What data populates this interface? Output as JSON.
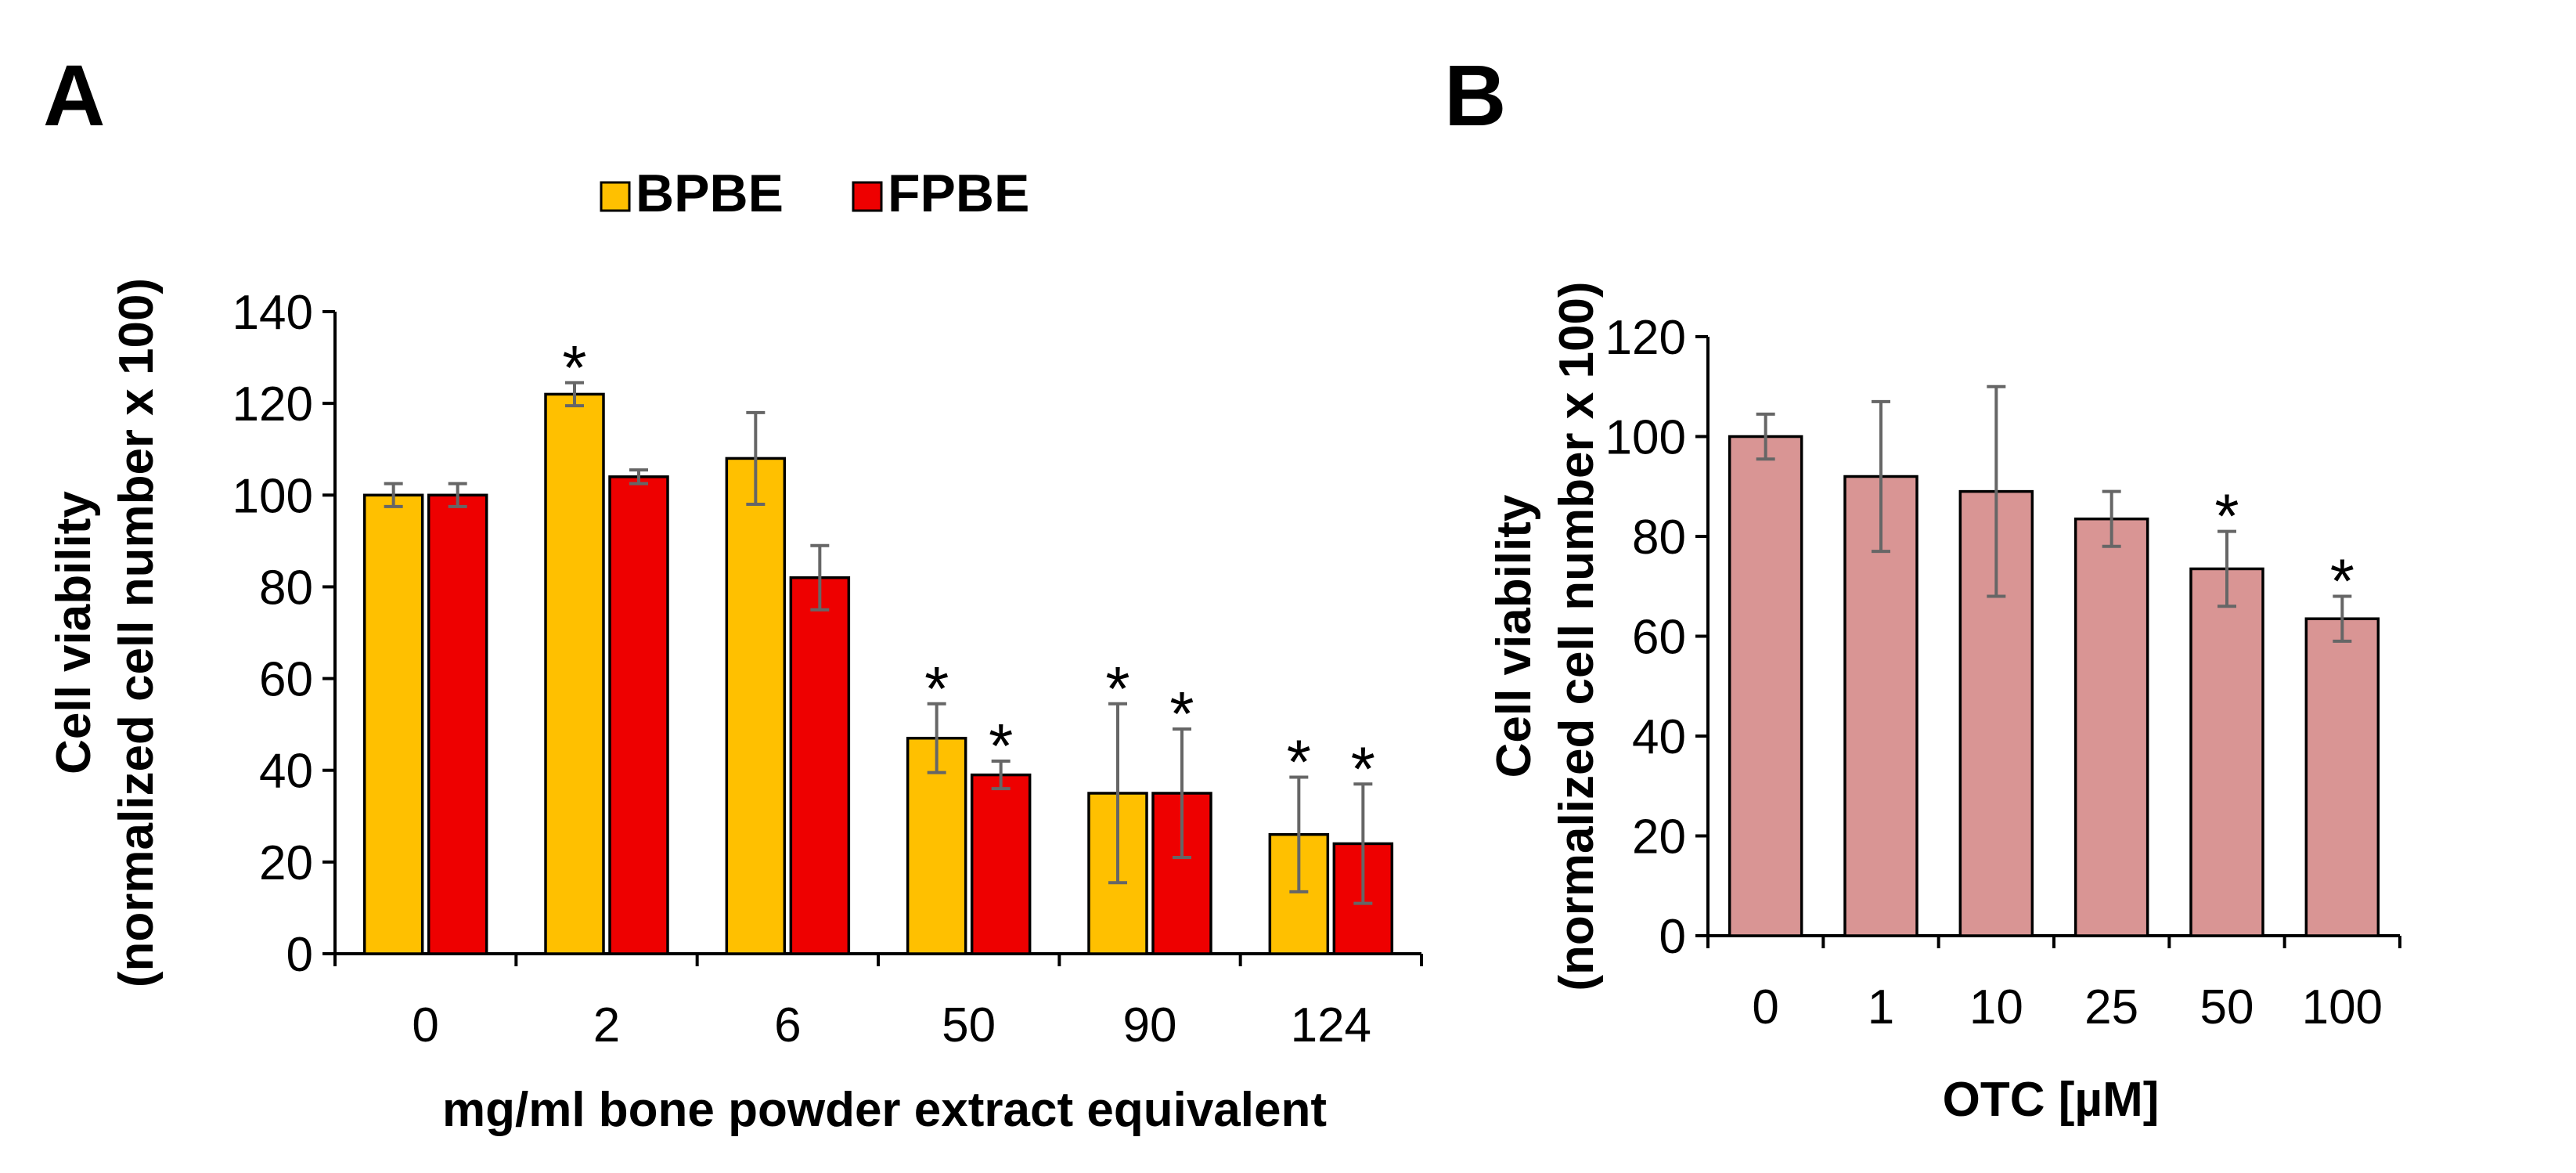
{
  "colors": {
    "bpbe": "#FFC000",
    "fpbe": "#EE0000",
    "otc": "#D99594",
    "error": "#666666",
    "axis": "#000000"
  },
  "chart_data": [
    {
      "panel": "A",
      "type": "bar",
      "xlabel": "mg/ml bone powder extract equivalent",
      "ylabel_line1": "Cell viability",
      "ylabel_line2": "(normalized cell number x 100)",
      "ylim": [
        0,
        140
      ],
      "yticks": [
        0,
        20,
        40,
        60,
        80,
        100,
        120,
        140
      ],
      "categories": [
        "0",
        "2",
        "6",
        "50",
        "90",
        "124"
      ],
      "legend_position": "top-center",
      "series": [
        {
          "name": "BPBE",
          "color_key": "bpbe",
          "values": [
            100,
            122,
            108,
            47,
            35,
            26
          ],
          "errors": [
            2.5,
            2.5,
            10,
            7.5,
            19.5,
            12.5
          ],
          "significant": [
            false,
            true,
            false,
            true,
            true,
            true
          ]
        },
        {
          "name": "FPBE",
          "color_key": "fpbe",
          "values": [
            100,
            104,
            82,
            39,
            35,
            24
          ],
          "errors": [
            2.5,
            1.5,
            7,
            3,
            14,
            13
          ],
          "significant": [
            false,
            false,
            false,
            true,
            true,
            true
          ]
        }
      ],
      "marker": "*"
    },
    {
      "panel": "B",
      "type": "bar",
      "xlabel": "OTC [µM]",
      "ylabel_line1": "Cell viability",
      "ylabel_line2": "(normalized cell number x 100)",
      "ylim": [
        0,
        120
      ],
      "yticks": [
        0,
        20,
        40,
        60,
        80,
        100,
        120
      ],
      "categories": [
        "0",
        "1",
        "10",
        "25",
        "50",
        "100"
      ],
      "series": [
        {
          "name": "OTC",
          "color_key": "otc",
          "values": [
            100,
            92,
            89,
            83.5,
            73.5,
            63.5
          ],
          "errors": [
            4.5,
            15,
            21,
            5.5,
            7.5,
            4.5
          ],
          "significant": [
            false,
            false,
            false,
            false,
            true,
            true
          ]
        }
      ],
      "marker": "*"
    }
  ]
}
